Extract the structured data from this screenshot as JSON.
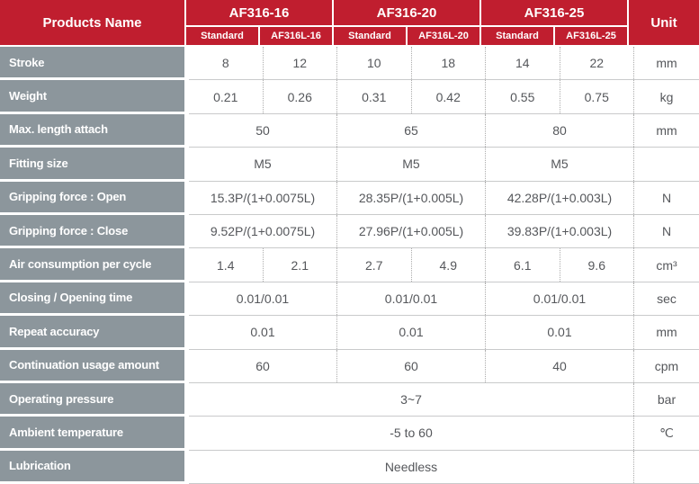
{
  "header": {
    "products_name": "Products Name",
    "unit_label": "Unit",
    "groups": [
      {
        "name": "AF316-16",
        "subs": [
          "Standard",
          "AF316L-16"
        ]
      },
      {
        "name": "AF316-20",
        "subs": [
          "Standard",
          "AF316L-20"
        ]
      },
      {
        "name": "AF316-25",
        "subs": [
          "Standard",
          "AF316L-25"
        ]
      }
    ]
  },
  "rows": [
    {
      "label": "Stroke",
      "values": [
        "8",
        "12",
        "10",
        "18",
        "14",
        "22"
      ],
      "unit": "mm"
    },
    {
      "label": "Weight",
      "values": [
        "0.21",
        "0.26",
        "0.31",
        "0.42",
        "0.55",
        "0.75"
      ],
      "unit": "kg"
    },
    {
      "label": "Max. length attach",
      "values": [
        "50",
        "65",
        "80"
      ],
      "unit": "mm"
    },
    {
      "label": "Fitting size",
      "values": [
        "M5",
        "M5",
        "M5"
      ],
      "unit": ""
    },
    {
      "label": "Gripping force : Open",
      "values": [
        "15.3P/(1+0.0075L)",
        "28.35P/(1+0.005L)",
        "42.28P/(1+0.003L)"
      ],
      "unit": "N"
    },
    {
      "label": "Gripping force : Close",
      "values": [
        "9.52P/(1+0.0075L)",
        "27.96P/(1+0.005L)",
        "39.83P/(1+0.003L)"
      ],
      "unit": "N"
    },
    {
      "label": "Air consumption per cycle",
      "values": [
        "1.4",
        "2.1",
        "2.7",
        "4.9",
        "6.1",
        "9.6"
      ],
      "unit": "cm³"
    },
    {
      "label": "Closing / Opening time",
      "values": [
        "0.01/0.01",
        "0.01/0.01",
        "0.01/0.01"
      ],
      "unit": "sec"
    },
    {
      "label": "Repeat accuracy",
      "values": [
        "0.01",
        "0.01",
        "0.01"
      ],
      "unit": "mm"
    },
    {
      "label": "Continuation usage amount",
      "values": [
        "60",
        "60",
        "40"
      ],
      "unit": "cpm"
    },
    {
      "label": "Operating pressure",
      "values": [
        "3~7"
      ],
      "unit": "bar"
    },
    {
      "label": "Ambient temperature",
      "values": [
        "-5 to 60"
      ],
      "unit": "℃"
    },
    {
      "label": "Lubrication",
      "values": [
        "Needless"
      ],
      "unit": ""
    }
  ],
  "colors": {
    "header_red": "#C01E2F",
    "label_gray": "#8C969C",
    "data_text": "#55575B",
    "row_line": "#C9CACB",
    "dotted_line": "#ACACAC"
  }
}
